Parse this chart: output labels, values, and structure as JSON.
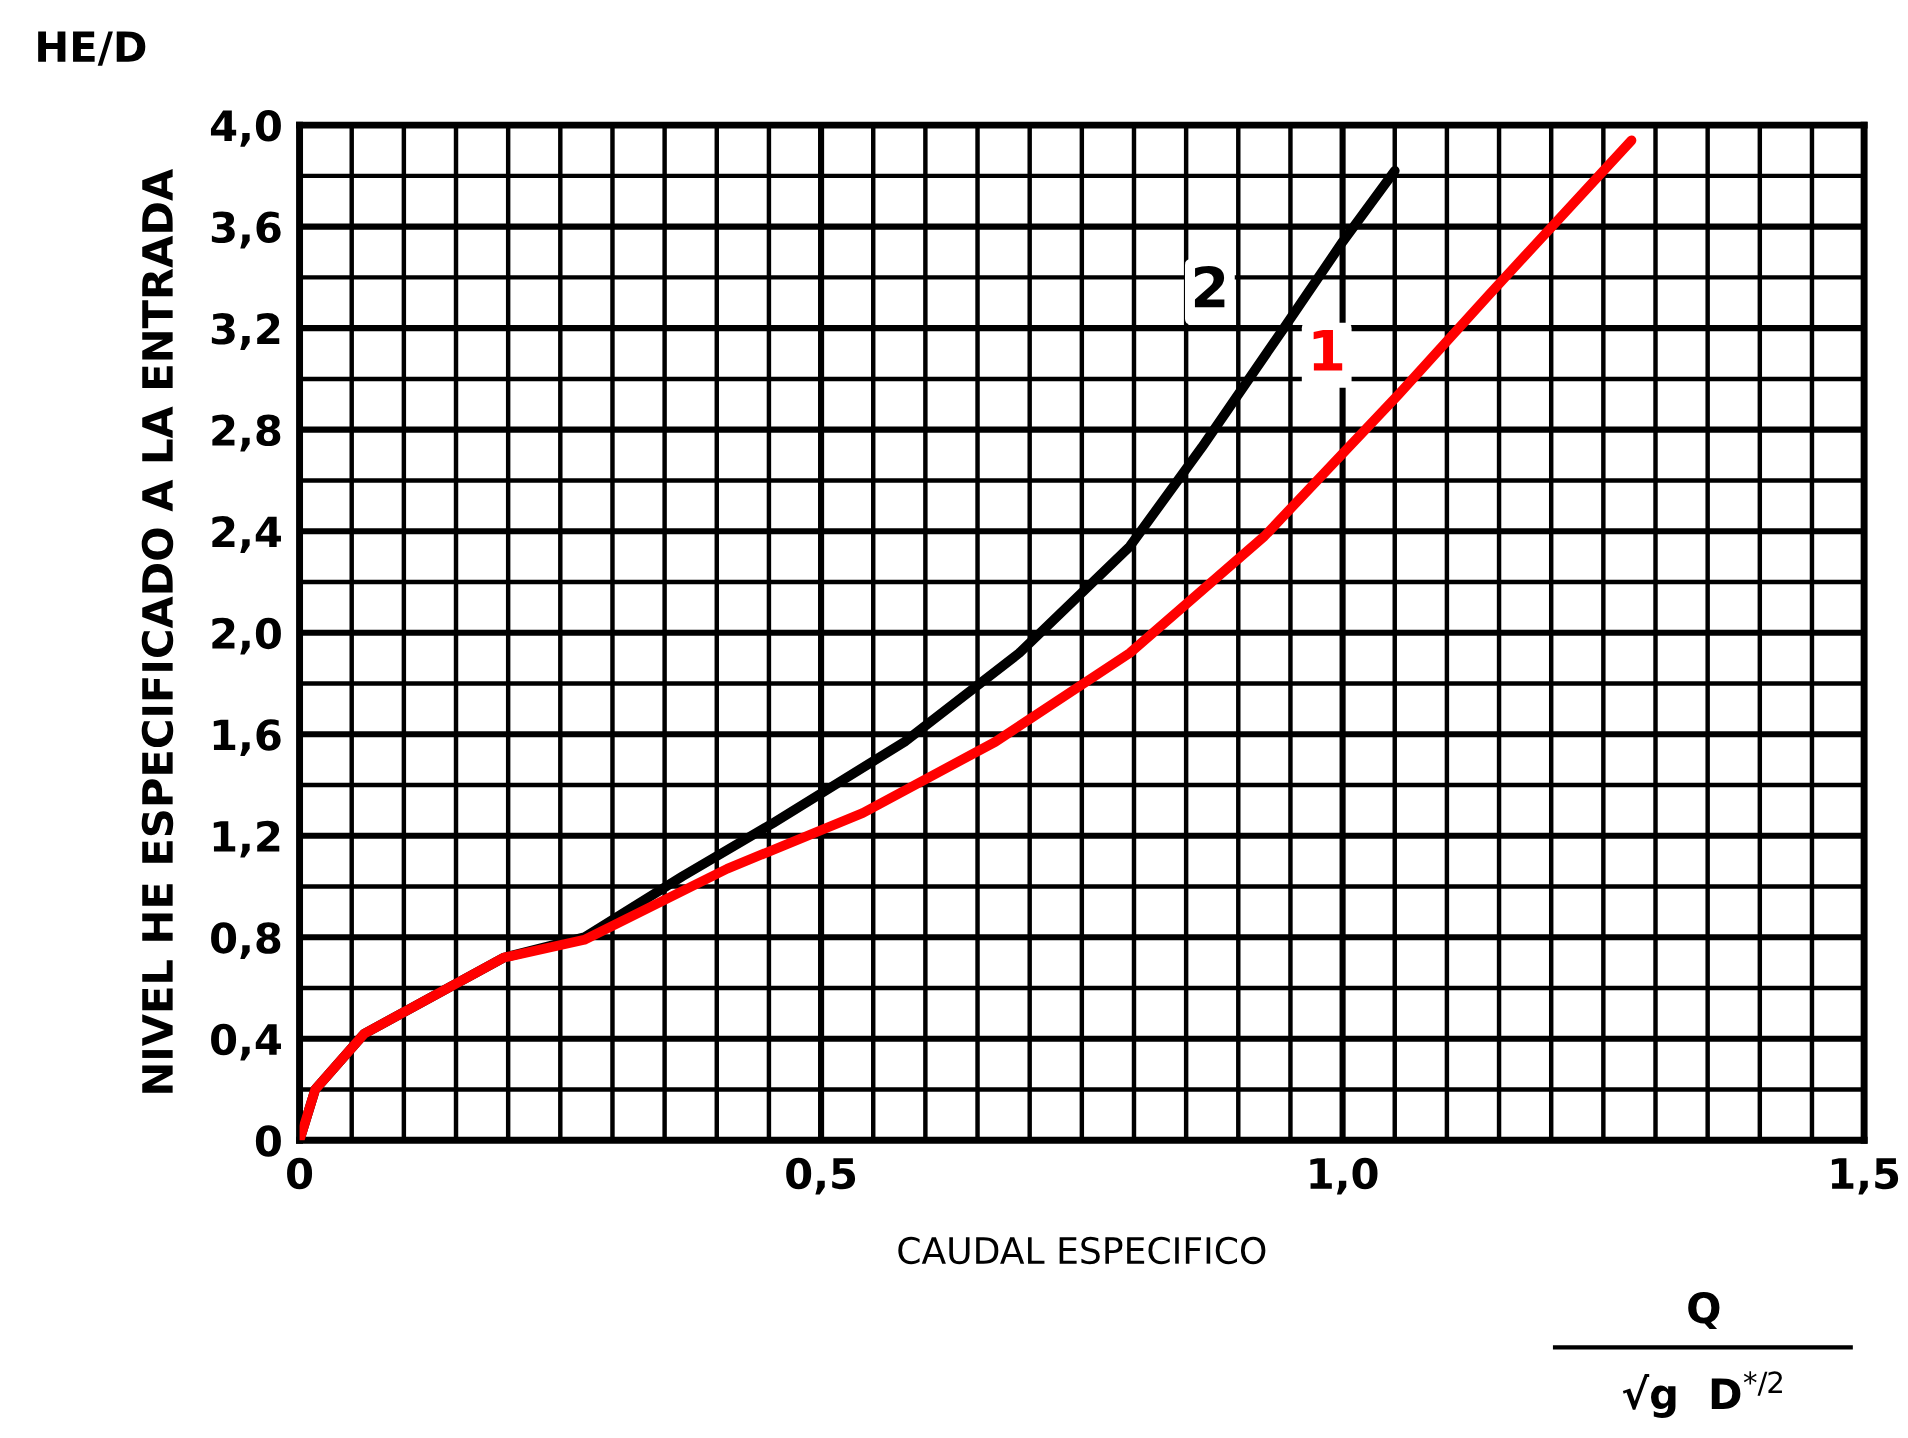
{
  "chart_data": {
    "type": "line",
    "xlabel": "CAUDAL ESPECIFICO",
    "ylabel": "NIVEL HE ESPECIFICADO A LA ENTRADA",
    "annotations": [
      "HE/D",
      "Q",
      "√g  D$^{*/2}$"
    ],
    "xlim": [
      0,
      1.5
    ],
    "ylim": [
      0,
      4.0
    ],
    "xticks": [
      0,
      {
        "value": 0.5,
        "label": "0,5"
      },
      {
        "value": 1.0,
        "label": "1,0"
      },
      {
        "value": 1.5,
        "label": "1,5"
      }
    ],
    "yticks": [
      0,
      {
        "value": 0.4,
        "label": "0,4"
      },
      {
        "value": 0.8,
        "label": "0,8"
      },
      {
        "value": 1.2,
        "label": "1,2"
      },
      {
        "value": 1.6,
        "label": "1,6"
      },
      {
        "value": 2.0,
        "label": "2,0"
      },
      {
        "value": 2.4,
        "label": "2,4"
      },
      {
        "value": 2.8,
        "label": "2,8"
      },
      {
        "value": 3.2,
        "label": "3,2"
      },
      {
        "value": 3.6,
        "label": "3,6"
      },
      {
        "value": 4.0,
        "label": "4,0"
      }
    ],
    "grid": true,
    "legend": false,
    "series": [
      {
        "name": "2",
        "color": "#000000",
        "x": [
          0,
          0.015,
          0.062,
          0.196,
          0.273,
          0.367,
          0.454,
          0.58,
          0.69,
          0.796,
          0.865,
          0.942,
          1.0,
          1.05
        ],
        "values": [
          0,
          0.2,
          0.42,
          0.72,
          0.8,
          1.04,
          1.25,
          1.57,
          1.92,
          2.34,
          2.73,
          3.19,
          3.54,
          3.82
        ]
      },
      {
        "name": "1",
        "color": "#ff0000",
        "x": [
          0,
          0.015,
          0.062,
          0.196,
          0.273,
          0.41,
          0.54,
          0.667,
          0.796,
          0.925,
          1.054,
          1.14,
          1.277
        ],
        "values": [
          0,
          0.2,
          0.42,
          0.72,
          0.79,
          1.07,
          1.29,
          1.57,
          1.92,
          2.38,
          2.94,
          3.33,
          3.94
        ]
      }
    ]
  }
}
